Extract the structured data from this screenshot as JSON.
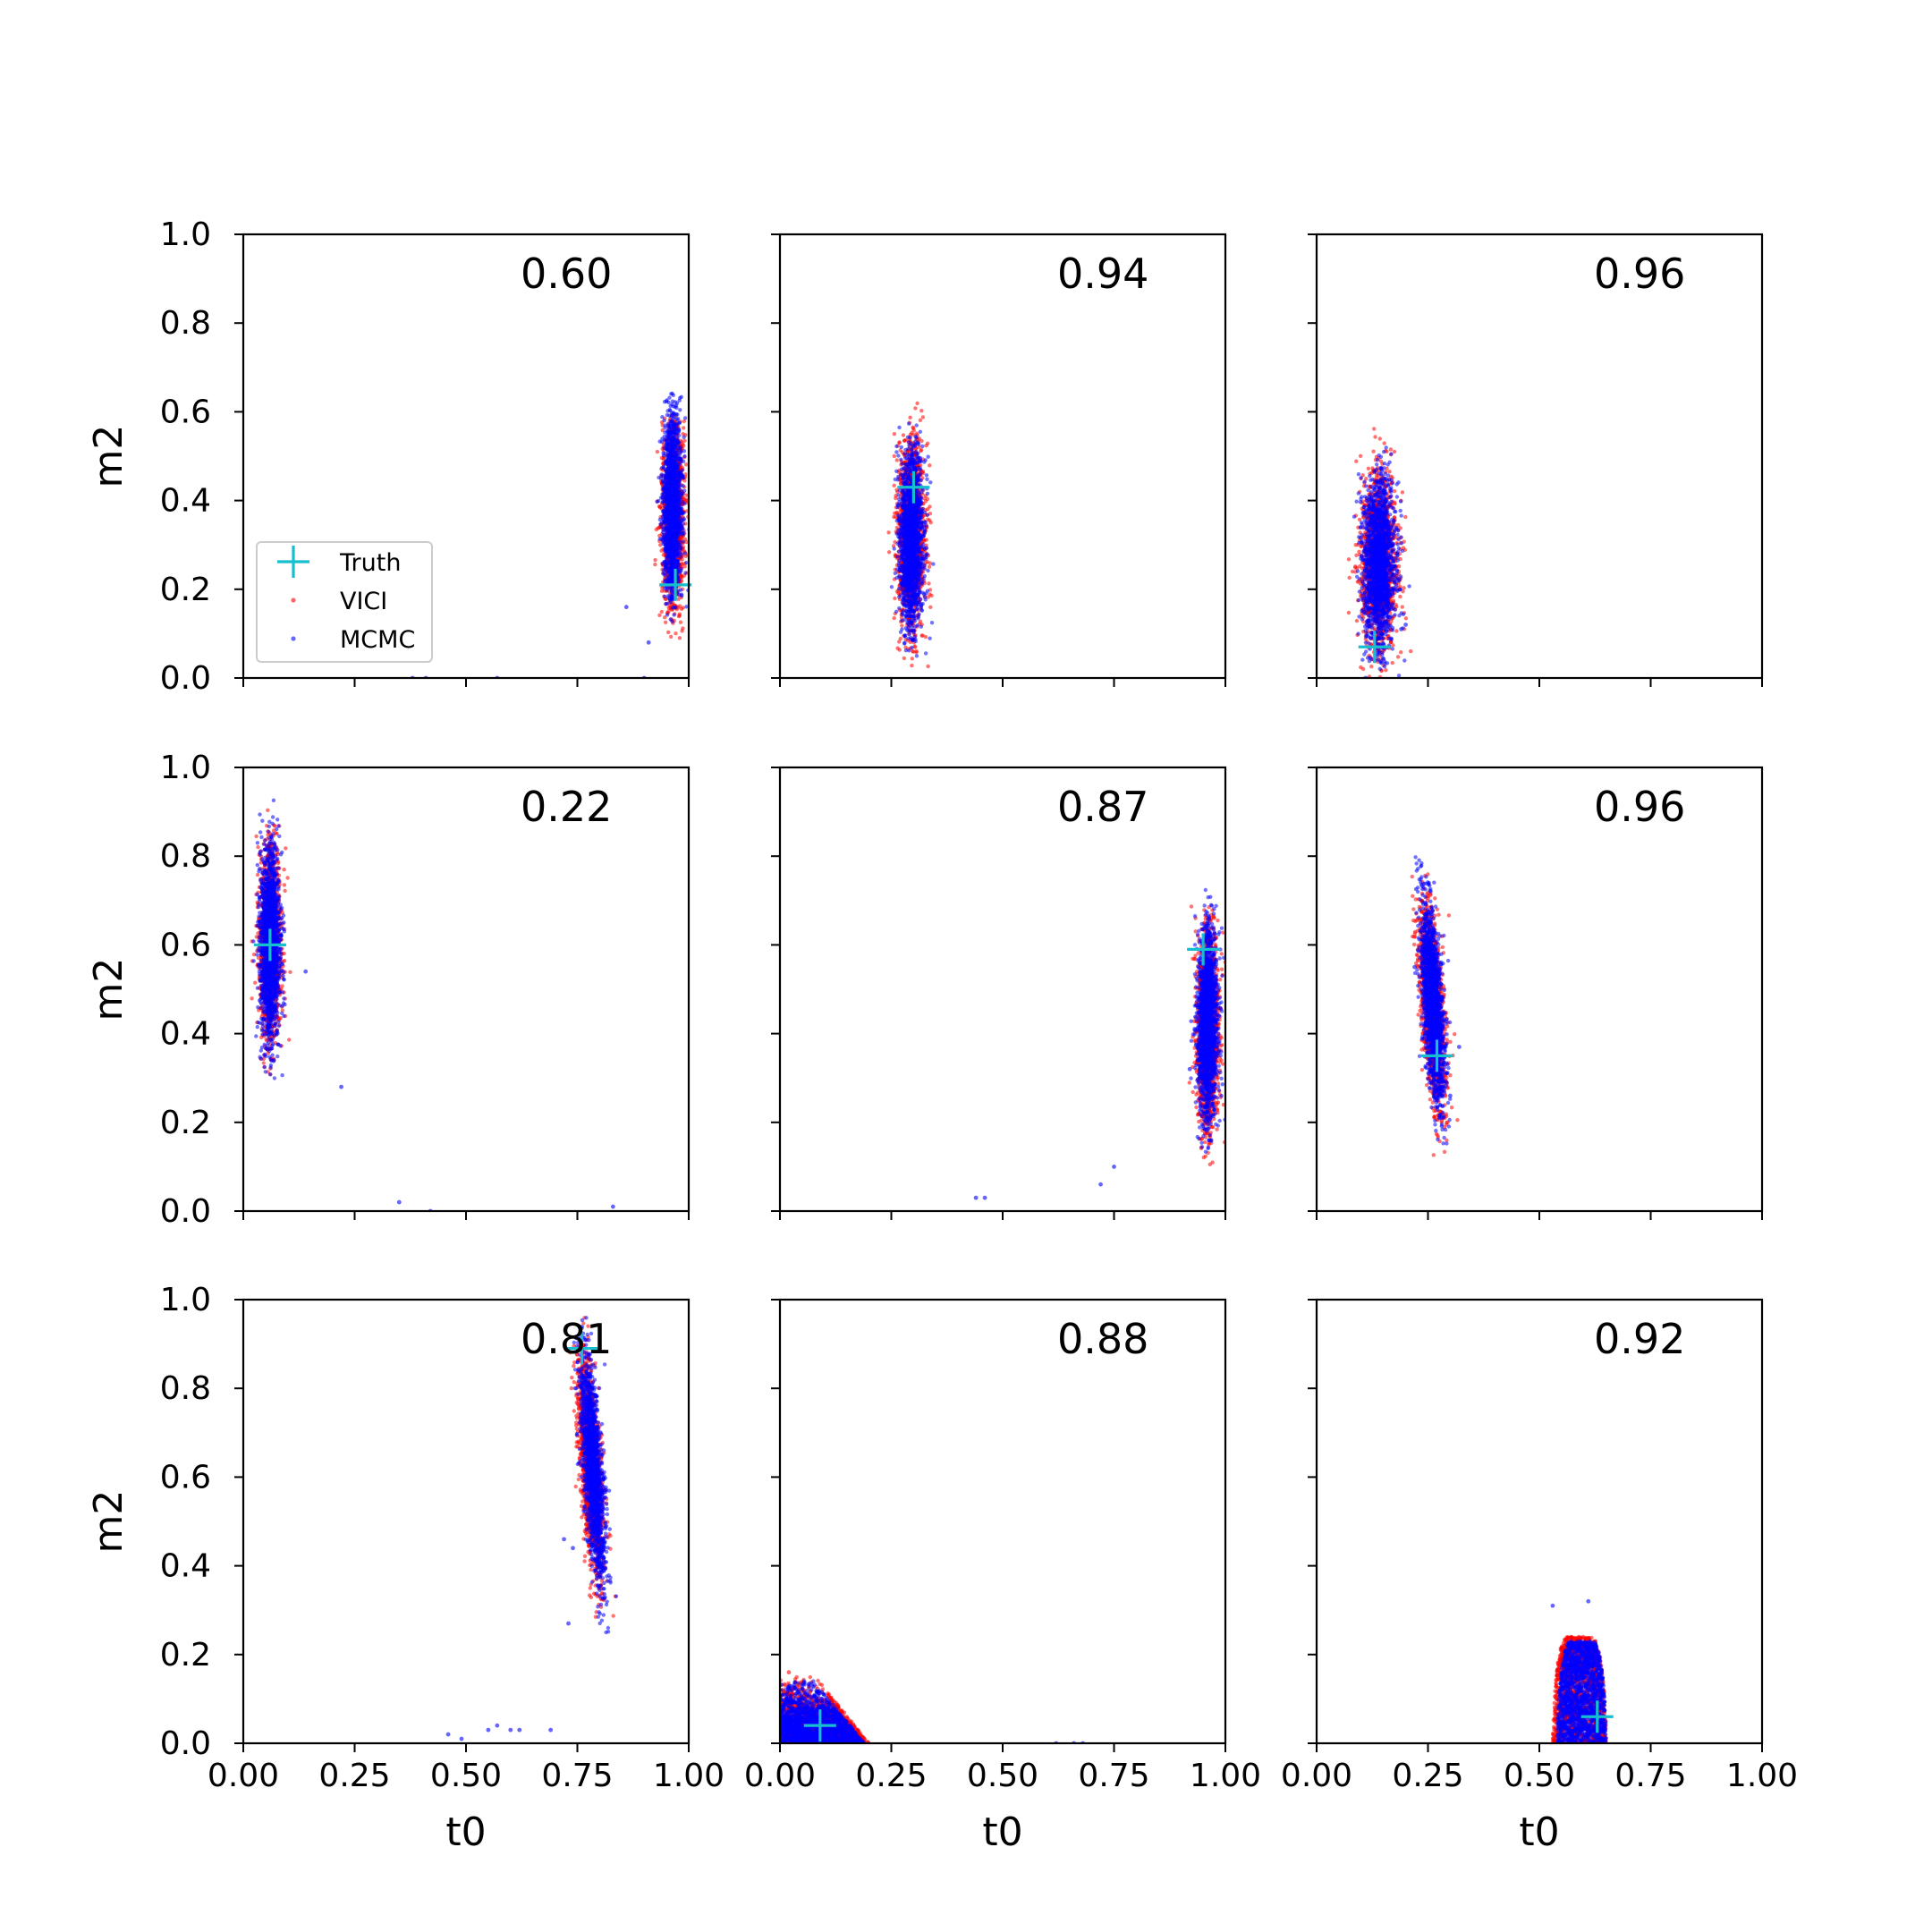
{
  "legend": {
    "entries": [
      {
        "label": "Truth",
        "marker": "plus",
        "color": "#17becf"
      },
      {
        "label": "VICI",
        "marker": "dot",
        "color": "#ff0000"
      },
      {
        "label": "MCMC",
        "marker": "dot",
        "color": "#0000ff"
      }
    ],
    "placement": "lower-left of first panel"
  },
  "chart_data": [
    {
      "type": "scatter",
      "xlabel": "",
      "ylabel": "m2",
      "xlim": [
        0,
        1
      ],
      "ylim": [
        0,
        1
      ],
      "xticks": [
        "0.00",
        "0.25",
        "0.50",
        "0.75",
        "1.00"
      ],
      "yticks": [
        "0.0",
        "0.2",
        "0.4",
        "0.6",
        "0.8",
        "1.0"
      ],
      "annotation": "0.60",
      "truth": {
        "x": 0.97,
        "y": 0.21
      },
      "vici": {
        "cluster": {
          "cx": 0.965,
          "cy": 0.37,
          "sx": 0.012,
          "sy": 0.28,
          "slope": 0,
          "y_min": 0.09,
          "y_max": 0.6
        },
        "outliers": []
      },
      "mcmc": {
        "cluster": {
          "cx": 0.963,
          "cy": 0.39,
          "sx": 0.01,
          "sy": 0.27,
          "slope": 0,
          "y_min": 0.12,
          "y_max": 0.65
        },
        "outliers": [
          [
            0.86,
            0.16
          ],
          [
            0.91,
            0.08
          ],
          [
            0.38,
            0.0
          ],
          [
            0.41,
            0.0
          ],
          [
            0.57,
            0.0
          ],
          [
            0.9,
            0.0
          ]
        ]
      }
    },
    {
      "type": "scatter",
      "xlabel": "",
      "ylabel": "",
      "xlim": [
        0,
        1
      ],
      "ylim": [
        0,
        1
      ],
      "xticks": [
        "0.00",
        "0.25",
        "0.50",
        "0.75",
        "1.00"
      ],
      "yticks": [
        "0.0",
        "0.2",
        "0.4",
        "0.6",
        "0.8",
        "1.0"
      ],
      "annotation": "0.94",
      "truth": {
        "x": 0.3,
        "y": 0.43
      },
      "vici": {
        "cluster": {
          "cx": 0.295,
          "cy": 0.32,
          "sx": 0.015,
          "sy": 0.3,
          "slope": 0,
          "y_min": 0.02,
          "y_max": 0.64
        },
        "outliers": []
      },
      "mcmc": {
        "cluster": {
          "cx": 0.295,
          "cy": 0.31,
          "sx": 0.013,
          "sy": 0.26,
          "slope": 0,
          "y_min": 0.04,
          "y_max": 0.58
        },
        "outliers": []
      }
    },
    {
      "type": "scatter",
      "xlabel": "",
      "ylabel": "",
      "xlim": [
        0,
        1
      ],
      "ylim": [
        0,
        1
      ],
      "xticks": [
        "0.00",
        "0.25",
        "0.50",
        "0.75",
        "1.00"
      ],
      "yticks": [
        "0.0",
        "0.2",
        "0.4",
        "0.6",
        "0.8",
        "1.0"
      ],
      "annotation": "0.96",
      "truth": {
        "x": 0.13,
        "y": 0.07
      },
      "vici": {
        "cluster": {
          "cx": 0.14,
          "cy": 0.26,
          "sx": 0.02,
          "sy": 0.28,
          "slope": 0,
          "y_min": 0.0,
          "y_max": 0.57
        },
        "outliers": []
      },
      "mcmc": {
        "cluster": {
          "cx": 0.14,
          "cy": 0.26,
          "sx": 0.018,
          "sy": 0.26,
          "slope": 0,
          "y_min": 0.0,
          "y_max": 0.55
        },
        "outliers": [
          [
            0.17,
            0.2
          ],
          [
            0.19,
            0.11
          ],
          [
            0.2,
            0.12
          ],
          [
            0.11,
            0.0
          ]
        ]
      }
    },
    {
      "type": "scatter",
      "xlabel": "",
      "ylabel": "m2",
      "xlim": [
        0,
        1
      ],
      "ylim": [
        0,
        1
      ],
      "xticks": [
        "0.00",
        "0.25",
        "0.50",
        "0.75",
        "1.00"
      ],
      "yticks": [
        "0.0",
        "0.2",
        "0.4",
        "0.6",
        "0.8",
        "1.0"
      ],
      "annotation": "0.22",
      "truth": {
        "x": 0.06,
        "y": 0.6
      },
      "vici": {
        "cluster": {
          "cx": 0.06,
          "cy": 0.6,
          "sx": 0.012,
          "sy": 0.3,
          "slope": 0,
          "y_min": 0.3,
          "y_max": 0.92
        },
        "outliers": []
      },
      "mcmc": {
        "cluster": {
          "cx": 0.06,
          "cy": 0.6,
          "sx": 0.011,
          "sy": 0.3,
          "slope": 0,
          "y_min": 0.29,
          "y_max": 0.96
        },
        "outliers": [
          [
            0.14,
            0.54
          ],
          [
            0.22,
            0.28
          ],
          [
            0.35,
            0.02
          ],
          [
            0.42,
            0.0
          ],
          [
            0.83,
            0.01
          ]
        ]
      }
    },
    {
      "type": "scatter",
      "xlabel": "",
      "ylabel": "",
      "xlim": [
        0,
        1
      ],
      "ylim": [
        0,
        1
      ],
      "xticks": [
        "0.00",
        "0.25",
        "0.50",
        "0.75",
        "1.00"
      ],
      "yticks": [
        "0.0",
        "0.2",
        "0.4",
        "0.6",
        "0.8",
        "1.0"
      ],
      "annotation": "0.87",
      "truth": {
        "x": 0.95,
        "y": 0.59
      },
      "vici": {
        "cluster": {
          "cx": 0.96,
          "cy": 0.41,
          "sx": 0.012,
          "sy": 0.3,
          "slope": 0,
          "y_min": 0.1,
          "y_max": 0.7
        },
        "outliers": []
      },
      "mcmc": {
        "cluster": {
          "cx": 0.96,
          "cy": 0.42,
          "sx": 0.011,
          "sy": 0.3,
          "slope": 0,
          "y_min": 0.13,
          "y_max": 0.74
        },
        "outliers": [
          [
            0.92,
            0.32
          ],
          [
            0.75,
            0.1
          ],
          [
            0.72,
            0.06
          ],
          [
            0.44,
            0.03
          ],
          [
            0.46,
            0.03
          ]
        ]
      }
    },
    {
      "type": "scatter",
      "xlabel": "",
      "ylabel": "",
      "xlim": [
        0,
        1
      ],
      "ylim": [
        0,
        1
      ],
      "xticks": [
        "0.00",
        "0.25",
        "0.50",
        "0.75",
        "1.00"
      ],
      "yticks": [
        "0.0",
        "0.2",
        "0.4",
        "0.6",
        "0.8",
        "1.0"
      ],
      "annotation": "0.96",
      "truth": {
        "x": 0.27,
        "y": 0.35
      },
      "vici": {
        "cluster": {
          "cx": 0.26,
          "cy": 0.46,
          "sx": 0.012,
          "sy": 0.3,
          "slope": -0.07,
          "y_min": 0.12,
          "y_max": 0.78
        },
        "outliers": []
      },
      "mcmc": {
        "cluster": {
          "cx": 0.26,
          "cy": 0.47,
          "sx": 0.011,
          "sy": 0.3,
          "slope": -0.07,
          "y_min": 0.15,
          "y_max": 0.8
        },
        "outliers": [
          [
            0.32,
            0.37
          ],
          [
            0.3,
            0.26
          ],
          [
            0.22,
            0.55
          ]
        ]
      }
    },
    {
      "type": "scatter",
      "xlabel": "t0",
      "ylabel": "m2",
      "xlim": [
        0,
        1
      ],
      "ylim": [
        0,
        1
      ],
      "xticks": [
        "0.00",
        "0.25",
        "0.50",
        "0.75",
        "1.00"
      ],
      "yticks": [
        "0.0",
        "0.2",
        "0.4",
        "0.6",
        "0.8",
        "1.0"
      ],
      "annotation": "0.81",
      "truth": {
        "x": 0.76,
        "y": 0.89
      },
      "vici": {
        "cluster": {
          "cx": 0.78,
          "cy": 0.62,
          "sx": 0.011,
          "sy": 0.34,
          "slope": -0.07,
          "y_min": 0.27,
          "y_max": 0.97
        },
        "outliers": []
      },
      "mcmc": {
        "cluster": {
          "cx": 0.785,
          "cy": 0.62,
          "sx": 0.01,
          "sy": 0.34,
          "slope": -0.07,
          "y_min": 0.25,
          "y_max": 0.96
        },
        "outliers": [
          [
            0.72,
            0.46
          ],
          [
            0.74,
            0.44
          ],
          [
            0.73,
            0.27
          ],
          [
            0.46,
            0.02
          ],
          [
            0.49,
            0.01
          ],
          [
            0.55,
            0.03
          ],
          [
            0.57,
            0.04
          ],
          [
            0.6,
            0.03
          ],
          [
            0.62,
            0.03
          ],
          [
            0.69,
            0.03
          ]
        ]
      }
    },
    {
      "type": "scatter",
      "xlabel": "t0",
      "ylabel": "",
      "xlim": [
        0,
        1
      ],
      "ylim": [
        0,
        1
      ],
      "xticks": [
        "0.00",
        "0.25",
        "0.50",
        "0.75",
        "1.00"
      ],
      "yticks": [
        "0.0",
        "0.2",
        "0.4",
        "0.6",
        "0.8",
        "1.0"
      ],
      "annotation": "0.88",
      "truth": {
        "x": 0.09,
        "y": 0.04
      },
      "vici": {
        "cluster": {
          "shape": "wedge",
          "x_min": 0.0,
          "x_max": 0.2,
          "y_max": 0.15
        },
        "outliers": [
          [
            0.02,
            0.16
          ]
        ]
      },
      "mcmc": {
        "cluster": {
          "shape": "wedge",
          "x_min": 0.0,
          "x_max": 0.19,
          "y_max": 0.14
        },
        "outliers": [
          [
            0.62,
            0.0
          ],
          [
            0.66,
            0.0
          ],
          [
            0.68,
            0.0
          ]
        ]
      }
    },
    {
      "type": "scatter",
      "xlabel": "t0",
      "ylabel": "",
      "xlim": [
        0,
        1
      ],
      "ylim": [
        0,
        1
      ],
      "xticks": [
        "0.00",
        "0.25",
        "0.50",
        "0.75",
        "1.00"
      ],
      "yticks": [
        "0.0",
        "0.2",
        "0.4",
        "0.6",
        "0.8",
        "1.0"
      ],
      "annotation": "0.92",
      "truth": {
        "x": 0.63,
        "y": 0.06
      },
      "vici": {
        "cluster": {
          "shape": "dome",
          "x_min": 0.53,
          "x_max": 0.65,
          "y_max": 0.24
        },
        "outliers": []
      },
      "mcmc": {
        "cluster": {
          "shape": "dome",
          "x_min": 0.54,
          "x_max": 0.65,
          "y_max": 0.23
        },
        "outliers": [
          [
            0.53,
            0.31
          ],
          [
            0.61,
            0.32
          ]
        ]
      }
    }
  ]
}
